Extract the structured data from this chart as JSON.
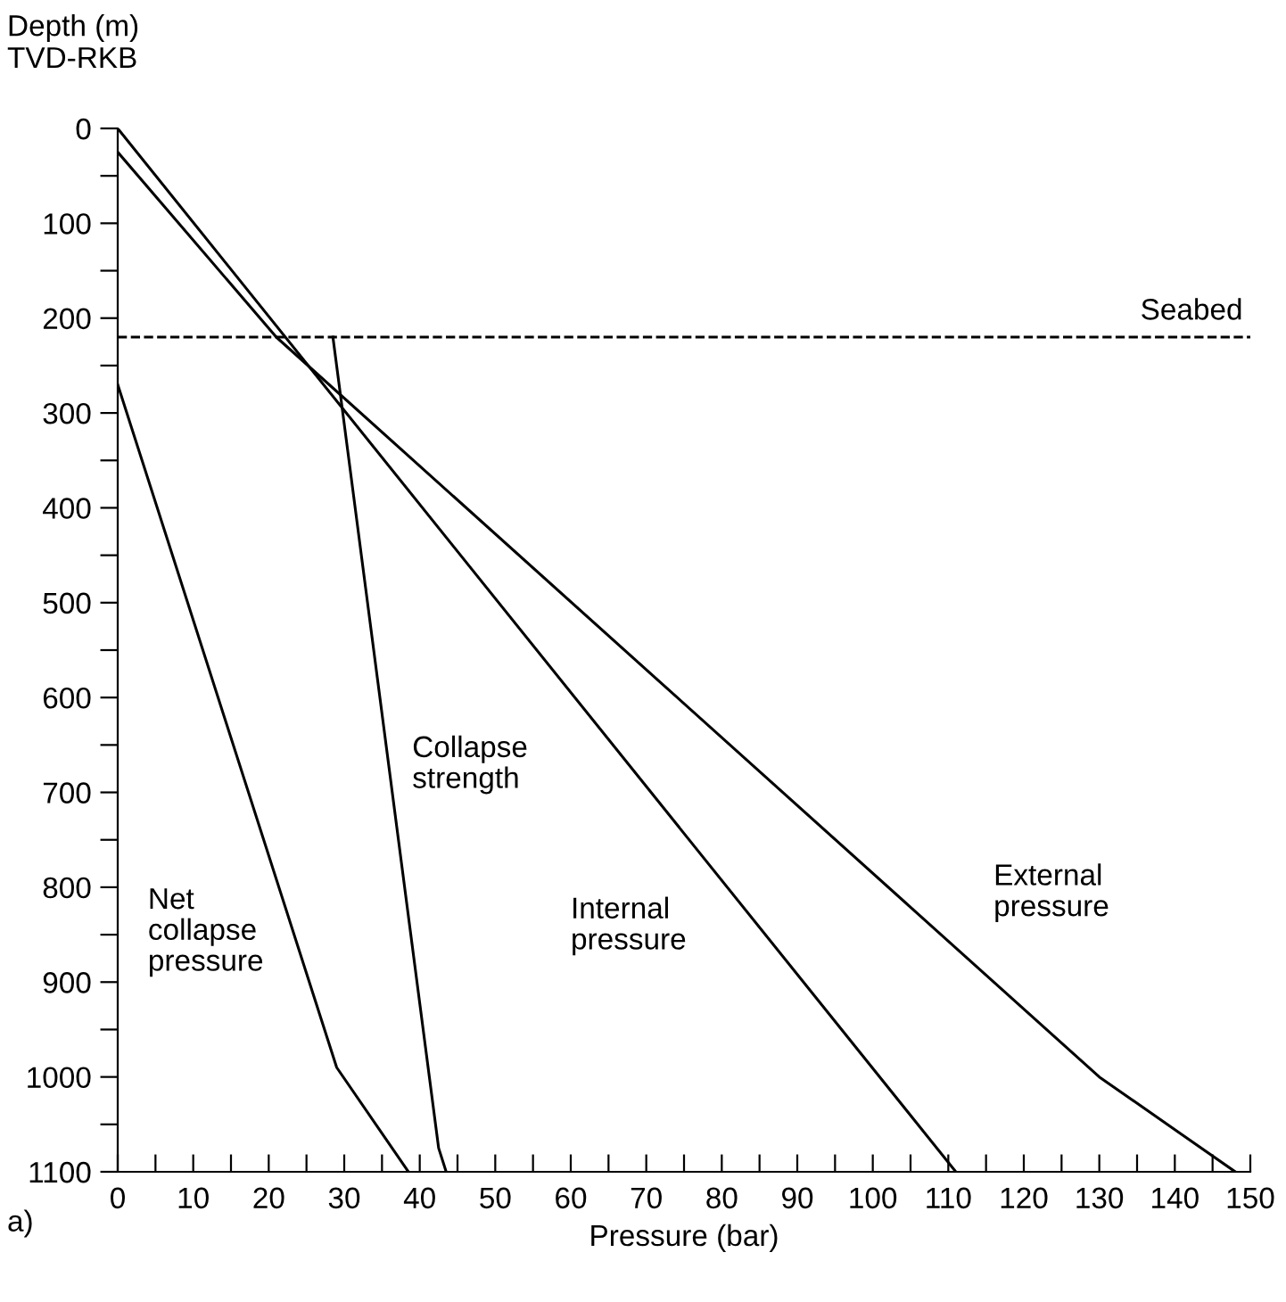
{
  "chart_data": {
    "type": "line",
    "xlabel": "Pressure (bar)",
    "ylabel": "Depth (m)\nTVD-RKB",
    "series": [
      {
        "name": "Net\ncollapse\npressure",
        "color": "#000000",
        "x": [
          0,
          29,
          38.5
        ],
        "values": [
          270,
          990,
          1100
        ]
      },
      {
        "name": "Collapse\nstrength",
        "color": "#000000",
        "x": [
          28.5,
          42.5,
          43.5
        ],
        "values": [
          220,
          1075,
          1100
        ]
      },
      {
        "name": "Internal\npressure",
        "color": "#000000",
        "x": [
          0,
          111
        ],
        "values": [
          0,
          1100
        ]
      },
      {
        "name": "External\npressure",
        "color": "#000000",
        "x": [
          0,
          21,
          130,
          148
        ],
        "values": [
          25,
          220,
          1000,
          1100
        ]
      }
    ],
    "xlim": [
      0,
      150
    ],
    "ylim": [
      1100,
      0
    ],
    "xticks": [
      0,
      {
        "value": 5,
        "label": null
      },
      10,
      {
        "value": 15,
        "label": null
      },
      20,
      {
        "value": 25,
        "label": null
      },
      30,
      {
        "value": 35,
        "label": null
      },
      40,
      {
        "value": 45,
        "label": null
      },
      50,
      {
        "value": 55,
        "label": null
      },
      60,
      {
        "value": 65,
        "label": null
      },
      70,
      {
        "value": 75,
        "label": null
      },
      80,
      {
        "value": 85,
        "label": null
      },
      90,
      {
        "value": 95,
        "label": null
      },
      100,
      {
        "value": 105,
        "label": null
      },
      110,
      {
        "value": 115,
        "label": null
      },
      120,
      {
        "value": 125,
        "label": null
      },
      130,
      {
        "value": 135,
        "label": null
      },
      140,
      {
        "value": 145,
        "label": null
      },
      150
    ],
    "yticks": [
      0,
      {
        "value": 50,
        "label": null
      },
      100,
      {
        "value": 150,
        "label": null
      },
      200,
      {
        "value": 250,
        "label": null
      },
      300,
      {
        "value": 350,
        "label": null
      },
      400,
      {
        "value": 450,
        "label": null
      },
      500,
      {
        "value": 550,
        "label": null
      },
      600,
      {
        "value": 650,
        "label": null
      },
      700,
      {
        "value": 750,
        "label": null
      },
      800,
      {
        "value": 850,
        "label": null
      },
      900,
      {
        "value": 950,
        "label": null
      },
      1000,
      {
        "value": 1050,
        "label": null
      },
      1100
    ],
    "ref_lines": [
      {
        "axis": "y",
        "value": 220,
        "label": "Seabed",
        "color": "#000000",
        "line_style": "dashed"
      }
    ],
    "annotations": [
      "a)"
    ],
    "grid": false,
    "legend": false,
    "marker": "none",
    "line_style": "solid"
  }
}
